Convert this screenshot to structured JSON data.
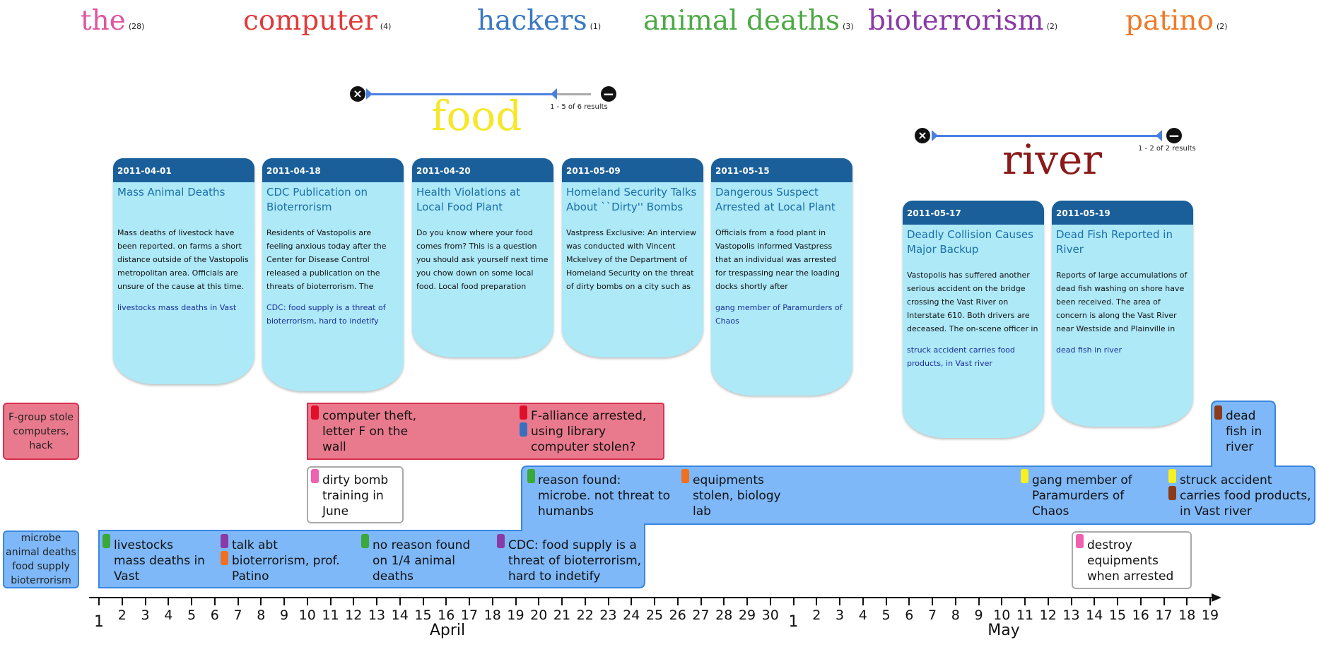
{
  "keywords": [
    {
      "word": "the",
      "count": "(28)",
      "color": "#e056a0"
    },
    {
      "word": "computer",
      "count": "(4)",
      "color": "#e23a3a"
    },
    {
      "word": "hackers",
      "count": "(1)",
      "color": "#3a78c2"
    },
    {
      "word": "animal deaths",
      "count": "(3)",
      "color": "#4caa44"
    },
    {
      "word": "bioterrorism",
      "count": "(2)",
      "color": "#8a3aa6"
    },
    {
      "word": "patino",
      "count": "(2)",
      "color": "#ee7a2a"
    }
  ],
  "searches": [
    {
      "keyword": "food",
      "results": "1 - 5 of 6 results",
      "color": "#f6e72c",
      "cards": [
        {
          "date": "2011-04-01",
          "title": "Mass Animal Deaths",
          "body": "Mass deaths of livestock have been reported. on farms a short distance outside of the Vastopolis metropolitan area. Officials are unsure of the cause at this time. Many farmers are preparing for",
          "note": "livestocks mass deaths in Vast"
        },
        {
          "date": "2011-04-18",
          "title": "CDC Publication on Bioterrorism",
          "body": "Residents of Vastopolis are feeling anxious today after the Center for Disease Control released a publication on the threats of bioterrorism. The publication focused on many of the more",
          "note": "CDC: food supply is a threat of bioterrorism, hard to indetify"
        },
        {
          "date": "2011-04-20",
          "title": "Health Violations at Local Food Plant",
          "body": "Do you know where your food comes from?           This is a question you should ask yourself next time you chow down on some local food. Local food preparation plants have been",
          "note": ""
        },
        {
          "date": "2011-05-09",
          "title": "Homeland Security Talks About ``Dirty'' Bombs",
          "body": "Vastpress Exclusive: An interview was conducted with Vincent Mckelvey  of the Department of Homeland Security on the threat of dirty bombs on a city such as Vastopolis. Mckelvey  clearly",
          "note": ""
        },
        {
          "date": "2011-05-15",
          "title": "Dangerous Suspect Arrested at Local Plant",
          "body": "Officials from a food plant in Vastopolis informed Vastpress that an individual was arrested for trespassing near the loading docks shortly after midnight.``Our dogs were the primary element alerting",
          "note": "gang member of Paramurders of Chaos"
        }
      ]
    },
    {
      "keyword": "river",
      "results": "1 - 2 of 2 results",
      "color": "#8b1a1a",
      "cards": [
        {
          "date": "2011-05-17",
          "title": "Deadly Collision Causes Major Backup",
          "body": "Vastopolis has suffered another serious accident on the bridge crossing the Vast River on Interstate 610. Both drivers are deceased. The on-scene officer in charge reported that it appears",
          "note": "struck accident carries food products, in Vast river"
        },
        {
          "date": "2011-05-19",
          "title": "Dead Fish Reported in River",
          "body": "Reports of large accumulations of dead fish washing on shore have been received. The area of concern is along the Vast River near Westside and Plainville in Vastopolis. Resident fishermen",
          "note": "dead fish in river"
        }
      ]
    }
  ],
  "lanes": {
    "fgroup_label": "F-group stole computers, hack",
    "microbe_label": "microbe animal deaths food supply bioterrorism"
  },
  "events": [
    {
      "text": "computer theft, letter F on the wall",
      "marker": "#e0102a"
    },
    {
      "text": "F-alliance arrested,",
      "marker": "#e0102a"
    },
    {
      "text": "using library computer stolen?",
      "marker": "#3a6fc0"
    },
    {
      "text": "dirty bomb training in June",
      "marker": "#f062b0"
    },
    {
      "text": "reason found: microbe. not threat to humanbs",
      "marker": "#3aa83a"
    },
    {
      "text": "equipments stolen, biology lab",
      "marker": "#f07020"
    },
    {
      "text": "gang member of Paramurders of Chaos",
      "marker": "#f8f020"
    },
    {
      "text": "struck accident carries food products, in Vast river",
      "marker": "#f8f020"
    },
    {
      "text": "dead fish in river",
      "marker": "#8b3a1a"
    },
    {
      "text": "livestocks mass deaths in Vast",
      "marker": "#3aa83a"
    },
    {
      "text": "talk abt bioterrorism, prof. Patino",
      "marker": "#8a3aa6"
    },
    {
      "text": "no reason found on 1/4 animal deaths",
      "marker": "#3aa83a"
    },
    {
      "text": "CDC: food supply is a threat of bioterrorism, hard to indetify",
      "marker": "#8a3aa6"
    },
    {
      "text": "destroy equipments when arrested",
      "marker": "#f062b0"
    }
  ],
  "marker_extra": {
    "patino": "#f07020",
    "struck": "#8b3a1a"
  },
  "axis": {
    "april_ticks": [
      "1",
      "2",
      "3",
      "4",
      "5",
      "6",
      "7",
      "8",
      "9",
      "10",
      "11",
      "12",
      "13",
      "14",
      "15",
      "16",
      "17",
      "18",
      "19",
      "20",
      "21",
      "22",
      "23",
      "24",
      "25",
      "26",
      "27",
      "28",
      "29",
      "30"
    ],
    "may_ticks": [
      "1",
      "2",
      "3",
      "4",
      "5",
      "6",
      "7",
      "8",
      "9",
      "10",
      "11",
      "12",
      "13",
      "14",
      "15",
      "16",
      "17",
      "18",
      "19"
    ],
    "months": [
      "April",
      "May"
    ]
  }
}
